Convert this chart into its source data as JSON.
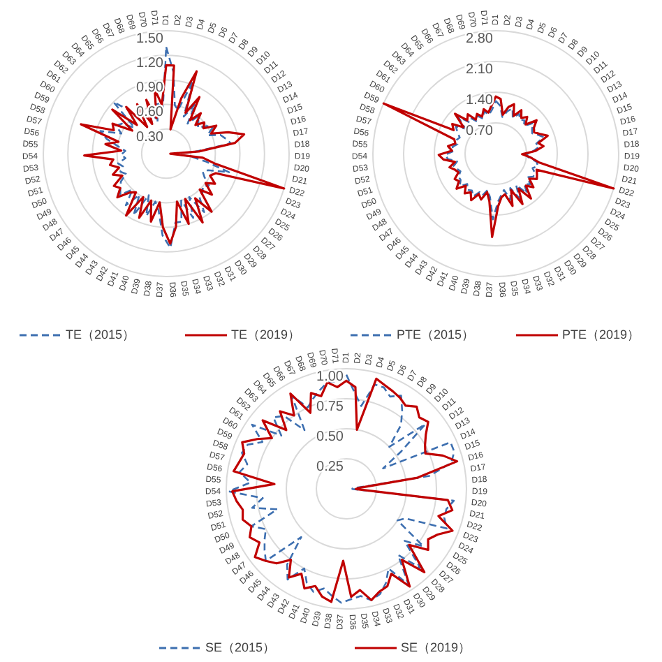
{
  "chart_data": [
    {
      "type": "radar",
      "categories": [
        "D1",
        "D2",
        "D3",
        "D4",
        "D5",
        "D6",
        "D7",
        "D8",
        "D9",
        "D10",
        "D11",
        "D12",
        "D13",
        "D14",
        "D15",
        "D16",
        "D17",
        "D18",
        "D19",
        "D20",
        "D21",
        "D22",
        "D23",
        "D24",
        "D25",
        "D26",
        "D27",
        "D28",
        "D29",
        "D30",
        "D31",
        "D32",
        "D33",
        "D34",
        "D35",
        "D36",
        "D37",
        "D38",
        "D39",
        "D40",
        "D41",
        "D42",
        "D43",
        "D44",
        "D45",
        "D46",
        "D47",
        "D48",
        "D49",
        "D50",
        "D51",
        "D52",
        "D53",
        "D54",
        "D55",
        "D56",
        "D57",
        "D58",
        "D59",
        "D60",
        "D61",
        "D62",
        "D63",
        "D64",
        "D65",
        "D66",
        "D67",
        "D68",
        "D69",
        "D70",
        "D71"
      ],
      "ylim": [
        0,
        1.5
      ],
      "yticks": [
        {
          "value": 0.3,
          "label": "0.30"
        },
        {
          "value": 0.6,
          "label": "0.60"
        },
        {
          "value": 0.9,
          "label": "0.90"
        },
        {
          "value": 1.2,
          "label": "1.20"
        },
        {
          "value": 1.5,
          "label": "1.50"
        }
      ],
      "grid": true,
      "legend": "bottom",
      "series": [
        {
          "name": "TE（2015）",
          "color": "#3d6fb0",
          "line_style": "dashed",
          "values": [
            1.3,
            1.0,
            0.6,
            0.55,
            0.95,
            0.5,
            0.7,
            0.45,
            0.6,
            0.55,
            0.5,
            0.6,
            0.65,
            0.55,
            0.7,
            0.75,
            0.8,
            0.35,
            0.1,
            0.3,
            0.5,
            0.8,
            0.55,
            0.5,
            0.55,
            0.65,
            0.6,
            0.65,
            0.65,
            0.85,
            0.6,
            0.85,
            0.6,
            0.85,
            0.85,
            1.15,
            1.0,
            0.7,
            0.6,
            0.8,
            0.55,
            0.85,
            0.6,
            0.8,
            0.6,
            0.75,
            0.7,
            0.65,
            0.55,
            0.6,
            0.55,
            0.6,
            0.5,
            0.55,
            0.5,
            0.6,
            0.75,
            0.85,
            0.6,
            0.7,
            0.65,
            0.5,
            0.9,
            0.7,
            0.4,
            0.65,
            0.4,
            0.65,
            0.4,
            0.65,
            0.5
          ]
        },
        {
          "name": "TE（2019）",
          "color": "#c00000",
          "line_style": "solid",
          "values": [
            1.08,
            1.08,
            0.3,
            0.7,
            1.07,
            0.55,
            0.8,
            0.5,
            0.65,
            0.5,
            0.6,
            0.55,
            0.7,
            0.6,
            0.8,
            0.98,
            0.85,
            0.4,
            0.05,
            0.45,
            0.6,
            1.5,
            0.65,
            0.6,
            0.7,
            0.6,
            0.75,
            0.6,
            0.9,
            0.65,
            0.95,
            0.6,
            0.9,
            0.6,
            0.9,
            1.1,
            0.9,
            0.6,
            0.85,
            0.6,
            0.85,
            0.6,
            0.9,
            0.6,
            0.65,
            0.8,
            0.7,
            0.75,
            0.6,
            0.7,
            0.6,
            0.7,
            0.65,
            1.0,
            0.55,
            0.75,
            0.6,
            1.1,
            0.7,
            0.75,
            0.5,
            0.85,
            0.5,
            0.75,
            0.4,
            0.7,
            0.4,
            0.7,
            0.45,
            0.8,
            0.6
          ]
        }
      ]
    },
    {
      "type": "radar",
      "categories": [
        "D1",
        "D2",
        "D3",
        "D4",
        "D5",
        "D6",
        "D7",
        "D8",
        "D9",
        "D10",
        "D11",
        "D12",
        "D13",
        "D14",
        "D15",
        "D16",
        "D17",
        "D18",
        "D19",
        "D20",
        "D21",
        "D22",
        "D23",
        "D24",
        "D25",
        "D26",
        "D27",
        "D28",
        "D29",
        "D30",
        "D31",
        "D32",
        "D33",
        "D34",
        "D35",
        "D36",
        "D37",
        "D38",
        "D39",
        "D40",
        "D41",
        "D42",
        "D43",
        "D44",
        "D45",
        "D46",
        "D47",
        "D48",
        "D49",
        "D50",
        "D51",
        "D52",
        "D53",
        "D54",
        "D55",
        "D56",
        "D57",
        "D58",
        "D59",
        "D60",
        "D61",
        "D62",
        "D63",
        "D64",
        "D65",
        "D66",
        "D67",
        "D68",
        "D69",
        "D70",
        "D71"
      ],
      "ylim": [
        0,
        2.8
      ],
      "yticks": [
        {
          "value": 0.7,
          "label": "0.70"
        },
        {
          "value": 1.4,
          "label": "1.40"
        },
        {
          "value": 2.1,
          "label": "2.10"
        },
        {
          "value": 2.8,
          "label": "2.80"
        }
      ],
      "grid": true,
      "legend": "bottom",
      "series": [
        {
          "name": "PTE（2015）",
          "color": "#3d6fb0",
          "line_style": "dashed",
          "values": [
            1.2,
            1.1,
            0.85,
            1.0,
            1.1,
            0.9,
            1.05,
            0.95,
            1.0,
            0.9,
            1.1,
            1.0,
            0.95,
            1.05,
            1.15,
            0.95,
            1.0,
            0.85,
            0.7,
            0.75,
            0.95,
            1.0,
            0.9,
            1.0,
            1.0,
            0.9,
            1.05,
            0.95,
            1.15,
            0.85,
            1.15,
            0.85,
            1.1,
            0.85,
            0.95,
            1.1,
            1.5,
            1.0,
            0.85,
            1.0,
            0.95,
            1.1,
            1.0,
            1.05,
            0.95,
            1.1,
            1.0,
            1.0,
            0.9,
            0.95,
            1.0,
            0.9,
            1.1,
            1.15,
            0.95,
            1.0,
            0.9,
            0.95,
            0.9,
            1.0,
            1.1,
            0.9,
            1.2,
            0.95,
            1.0,
            0.85,
            0.95,
            0.85,
            1.0,
            0.9,
            1.0
          ]
        },
        {
          "name": "PTE（2019）",
          "color": "#c00000",
          "line_style": "solid",
          "values": [
            1.3,
            1.25,
            0.9,
            1.1,
            1.2,
            0.95,
            1.15,
            1.0,
            1.1,
            0.95,
            1.2,
            1.05,
            1.0,
            1.1,
            1.25,
            1.0,
            1.1,
            0.9,
            0.6,
            0.8,
            1.0,
            2.8,
            1.0,
            1.05,
            1.1,
            0.95,
            1.15,
            1.0,
            1.3,
            0.95,
            1.3,
            0.9,
            1.25,
            0.95,
            1.0,
            1.2,
            1.9,
            1.1,
            0.9,
            1.1,
            1.0,
            1.2,
            1.05,
            1.15,
            1.0,
            1.2,
            1.05,
            1.1,
            0.95,
            1.0,
            1.1,
            0.95,
            1.2,
            1.3,
            1.0,
            1.1,
            0.95,
            1.0,
            2.8,
            1.1,
            1.2,
            0.95,
            1.3,
            1.0,
            1.1,
            0.9,
            1.0,
            0.9,
            1.05,
            0.95,
            1.1
          ]
        }
      ]
    },
    {
      "type": "radar",
      "categories": [
        "D1",
        "D2",
        "D3",
        "D4",
        "D5",
        "D6",
        "D7",
        "D8",
        "D9",
        "D10",
        "D11",
        "D12",
        "D13",
        "D14",
        "D15",
        "D16",
        "D17",
        "D18",
        "D19",
        "D20",
        "D21",
        "D22",
        "D23",
        "D24",
        "D25",
        "D26",
        "D27",
        "D28",
        "D29",
        "D30",
        "D31",
        "D32",
        "D33",
        "D34",
        "D35",
        "D36",
        "D37",
        "D38",
        "D39",
        "D40",
        "D41",
        "D42",
        "D43",
        "D44",
        "D45",
        "D46",
        "D47",
        "D48",
        "D49",
        "D50",
        "D51",
        "D52",
        "D53",
        "D54",
        "D55",
        "D56",
        "D57",
        "D58",
        "D59",
        "D60",
        "D61",
        "D62",
        "D63",
        "D64",
        "D65",
        "D66",
        "D67",
        "D68",
        "D69",
        "D70",
        "D71"
      ],
      "ylim": [
        0,
        1
      ],
      "yticks": [
        0.25,
        {
          "value": 0.5,
          "label": "0.50"
        },
        0.75,
        {
          "value": 1,
          "label": "1.00"
        }
      ],
      "grid": true,
      "legend": "bottom",
      "series": [
        {
          "name": "SE（2015）",
          "color": "#3d6fb0",
          "line_style": "dashed",
          "values": [
            0.95,
            0.8,
            0.7,
            0.9,
            0.9,
            0.85,
            0.9,
            0.8,
            0.7,
            0.5,
            0.85,
            0.55,
            0.35,
            0.95,
            0.95,
            0.9,
            0.7,
            0.05,
            0.05,
            0.9,
            0.85,
            0.85,
            0.9,
            0.55,
            0.5,
            0.8,
            0.65,
            0.9,
            0.7,
            0.95,
            0.75,
            0.85,
            0.92,
            0.95,
            0.9,
            0.92,
            0.95,
            0.9,
            0.85,
            0.9,
            0.85,
            0.75,
            0.9,
            0.8,
            0.55,
            0.9,
            0.85,
            0.8,
            0.75,
            0.85,
            0.6,
            0.8,
            0.7,
            0.98,
            0.8,
            0.9,
            0.85,
            0.92,
            0.9,
            0.8,
            0.95,
            0.7,
            0.85,
            0.8,
            0.6,
            0.9,
            0.75,
            0.8,
            0.85,
            0.9,
            0.9
          ]
        },
        {
          "name": "SE（2019）",
          "color": "#c00000",
          "line_style": "solid",
          "values": [
            0.9,
            0.85,
            0.5,
            0.95,
            0.92,
            0.9,
            0.88,
            0.85,
            0.9,
            0.85,
            0.88,
            0.8,
            0.75,
            0.72,
            0.85,
            0.95,
            0.6,
            0.1,
            0.08,
            0.85,
            0.9,
            0.8,
            0.95,
            0.85,
            0.8,
            0.85,
            0.7,
            0.95,
            0.75,
            0.97,
            0.8,
            0.88,
            0.9,
            0.95,
            0.85,
            0.9,
            0.6,
            0.95,
            0.92,
            0.85,
            0.9,
            0.8,
            0.88,
            0.75,
            0.85,
            0.9,
            0.95,
            0.85,
            0.9,
            0.85,
            0.9,
            0.88,
            0.92,
            0.95,
            0.6,
            0.95,
            0.92,
            0.9,
            0.95,
            0.85,
            0.75,
            0.9,
            0.7,
            0.85,
            0.75,
            0.92,
            0.7,
            0.85,
            0.8,
            0.9,
            0.85
          ]
        }
      ]
    }
  ]
}
